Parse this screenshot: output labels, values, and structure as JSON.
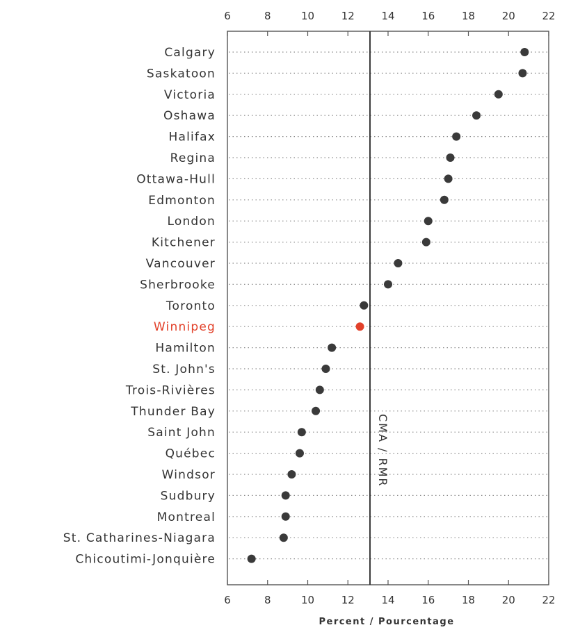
{
  "chart_data": {
    "type": "scatter",
    "categories": [
      "Calgary",
      "Saskatoon",
      "Victoria",
      "Oshawa",
      "Halifax",
      "Regina",
      "Ottawa-Hull",
      "Edmonton",
      "London",
      "Kitchener",
      "Vancouver",
      "Sherbrooke",
      "Toronto",
      "Winnipeg",
      "Hamilton",
      "St. John's",
      "Trois-Rivières",
      "Thunder Bay",
      "Saint John",
      "Québec",
      "Windsor",
      "Sudbury",
      "Montreal",
      "St. Catharines-Niagara",
      "Chicoutimi-Jonquière"
    ],
    "values": [
      20.8,
      20.7,
      19.5,
      18.4,
      17.4,
      17.1,
      17.0,
      16.8,
      16.0,
      15.9,
      14.5,
      14.0,
      12.8,
      12.6,
      11.2,
      10.9,
      10.6,
      10.4,
      9.7,
      9.6,
      9.2,
      8.9,
      8.9,
      8.8,
      7.2
    ],
    "highlight": "Winnipeg",
    "highlight_color": "#e2412a",
    "point_color": "#3a3a3a",
    "reference_line": {
      "value": 13.1,
      "label": "CMA / RMR"
    },
    "xlim": [
      6,
      22
    ],
    "ticks": [
      6,
      8,
      10,
      12,
      14,
      16,
      18,
      20,
      22
    ],
    "xlabel": "Percent / Pourcentage",
    "ticks_top_and_bottom": true,
    "grid": "dotted horizontal"
  }
}
